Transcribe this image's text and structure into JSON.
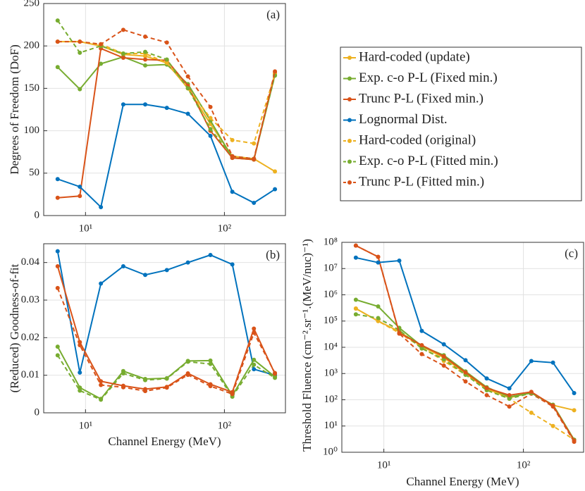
{
  "chart_data": [
    {
      "type": "line",
      "ylabel": "Degrees of Freedom (DoF)",
      "annotation": "(a)",
      "x": [
        6.3,
        9.1,
        12.9,
        18.7,
        26.9,
        38.5,
        54.6,
        79.3,
        114,
        163,
        231
      ],
      "xlim": [
        5,
        275
      ],
      "xscale": "log",
      "xticks": [
        {
          "value": 10,
          "label": "10¹"
        },
        {
          "value": 100,
          "label": "10²"
        }
      ],
      "ylim": [
        0,
        250
      ],
      "yticks": [
        0,
        50,
        100,
        150,
        200,
        250
      ],
      "grid": true,
      "legend": "outside right",
      "series": [
        {
          "name": "Hard-coded (update)",
          "color": "#EDB120",
          "linestyle": "solid",
          "values": [
            205,
            205,
            200,
            190,
            188,
            180,
            150,
            108,
            70,
            67,
            52
          ]
        },
        {
          "name": "Exp. c-o P-L (Fixed min.)",
          "color": "#77AC30",
          "linestyle": "solid",
          "values": [
            175,
            149,
            179,
            187,
            177,
            178,
            155,
            112,
            68,
            66,
            166
          ]
        },
        {
          "name": "Trunc P-L (Fixed min.)",
          "color": "#D95319",
          "linestyle": "solid",
          "values": [
            21,
            23,
            197,
            186,
            184,
            183,
            153,
            100,
            68,
            66,
            168
          ]
        },
        {
          "name": "Lognormal Dist.",
          "color": "#0072BD",
          "linestyle": "solid",
          "values": [
            43,
            34,
            10,
            131,
            131,
            127,
            120,
            94,
            28,
            15,
            31
          ]
        },
        {
          "name": "Hard-coded (original)",
          "color": "#EDB120",
          "linestyle": "dashed",
          "values": [
            205,
            205,
            202,
            191,
            191,
            180,
            150,
            115,
            89,
            85,
            167
          ]
        },
        {
          "name": "Exp. c-o P-L (Fitted min.)",
          "color": "#77AC30",
          "linestyle": "dashed",
          "values": [
            230,
            192,
            200,
            191,
            193,
            184,
            150,
            102,
            70,
            67,
            165
          ]
        },
        {
          "name": "Trunc P-L (Fitted min.)",
          "color": "#D95319",
          "linestyle": "dashed",
          "values": [
            205,
            205,
            202,
            219,
            211,
            204,
            164,
            128,
            70,
            67,
            170
          ]
        }
      ]
    },
    {
      "type": "line",
      "ylabel": "(Reduced) Goodness-of-fit",
      "xlabel": "Channel Energy (MeV)",
      "annotation": "(b)",
      "x": [
        6.3,
        9.1,
        12.9,
        18.7,
        26.9,
        38.5,
        54.6,
        79.3,
        114,
        163,
        231
      ],
      "xlim": [
        5,
        275
      ],
      "xscale": "log",
      "xticks": [
        {
          "value": 10,
          "label": "10¹"
        },
        {
          "value": 100,
          "label": "10²"
        }
      ],
      "ylim": [
        0,
        0.045
      ],
      "yticks": [
        0,
        0.01,
        0.02,
        0.03,
        0.04
      ],
      "grid": true,
      "series": [
        {
          "color": "#0072BD",
          "linestyle": "solid",
          "values": [
            0.043,
            0.0107,
            0.0344,
            0.039,
            0.0367,
            0.038,
            0.04,
            0.042,
            0.0395,
            0.0116,
            0.01
          ]
        },
        {
          "color": "#77AC30",
          "linestyle": "solid",
          "values": [
            0.0176,
            0.0067,
            0.0037,
            0.0111,
            0.009,
            0.0092,
            0.0138,
            0.0139,
            0.0046,
            0.0141,
            0.0096
          ]
        },
        {
          "color": "#77AC30",
          "linestyle": "dashed",
          "values": [
            0.0153,
            0.0059,
            0.0035,
            0.0105,
            0.0087,
            0.0091,
            0.0136,
            0.013,
            0.0043,
            0.0128,
            0.0093
          ]
        },
        {
          "color": "#D95319",
          "linestyle": "solid",
          "values": [
            0.039,
            0.0188,
            0.0084,
            0.0072,
            0.0063,
            0.0069,
            0.0105,
            0.0076,
            0.0055,
            0.0224,
            0.0104
          ]
        },
        {
          "color": "#D95319",
          "linestyle": "dashed",
          "values": [
            0.0332,
            0.018,
            0.0074,
            0.0068,
            0.0058,
            0.0067,
            0.0101,
            0.0071,
            0.005,
            0.0213,
            0.0106
          ]
        }
      ]
    },
    {
      "type": "line",
      "ylabel": "Threshold Fluence (cm⁻².sr⁻¹.(MeV/nuc)⁻¹)",
      "xlabel": "Channel Energy (MeV)",
      "annotation": "(c)",
      "x": [
        6.3,
        9.1,
        12.9,
        18.7,
        26.9,
        38.5,
        54.6,
        79.3,
        114,
        163,
        231
      ],
      "xlim": [
        5,
        270
      ],
      "xscale": "log",
      "xticks": [
        {
          "value": 10,
          "label": "10¹"
        },
        {
          "value": 100,
          "label": "10²"
        }
      ],
      "ylim": [
        1,
        100000000
      ],
      "yscale": "log",
      "yticks": [
        {
          "value": 1,
          "label": "10⁰"
        },
        {
          "value": 10,
          "label": "10¹"
        },
        {
          "value": 100,
          "label": "10²"
        },
        {
          "value": 1000,
          "label": "10³"
        },
        {
          "value": 10000,
          "label": "10⁴"
        },
        {
          "value": 100000,
          "label": "10⁵"
        },
        {
          "value": 1000000,
          "label": "10⁶"
        },
        {
          "value": 10000000,
          "label": "10⁷"
        },
        {
          "value": 100000000,
          "label": "10⁸"
        }
      ],
      "grid": true,
      "series": [
        {
          "color": "#EDB120",
          "linestyle": "solid",
          "values": [
            300000,
            100000,
            40000,
            11000,
            4000,
            1000,
            260,
            120,
            190,
            62,
            40
          ]
        },
        {
          "color": "#EDB120",
          "linestyle": "dashed",
          "values": [
            300000,
            100000,
            35000,
            10000,
            3000,
            900,
            250,
            110,
            32,
            10,
            3
          ]
        },
        {
          "color": "#77AC30",
          "linestyle": "dashed",
          "values": [
            180000,
            130000,
            45000,
            9000,
            3500,
            900,
            230,
            110,
            180,
            60,
            3
          ]
        },
        {
          "color": "#D95319",
          "linestyle": "dashed",
          "values": [
            75000000,
            28000000,
            33000,
            5500,
            2000,
            500,
            150,
            55,
            170,
            55,
            2.5
          ]
        },
        {
          "color": "#77AC30",
          "linestyle": "solid",
          "values": [
            650000,
            360000,
            55000,
            11000,
            5000,
            1200,
            300,
            130,
            180,
            65,
            3
          ]
        },
        {
          "color": "#D95319",
          "linestyle": "solid",
          "values": [
            75000000,
            28000000,
            35000,
            12000,
            4500,
            1100,
            280,
            150,
            200,
            60,
            2.8
          ]
        },
        {
          "color": "#0072BD",
          "linestyle": "solid",
          "values": [
            26000000,
            17000000,
            20000000,
            42000,
            13000,
            3200,
            650,
            270,
            3000,
            2600,
            180
          ]
        }
      ]
    }
  ]
}
